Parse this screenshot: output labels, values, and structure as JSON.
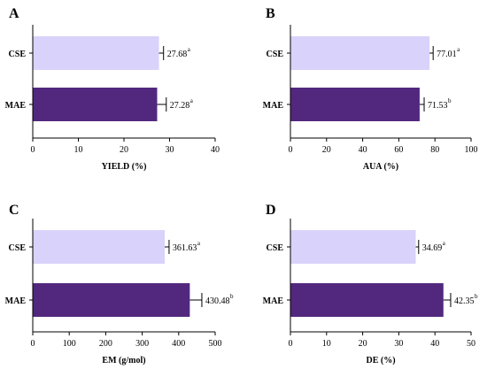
{
  "colors": {
    "CSE": "#d9d2fb",
    "MAE": "#52287f",
    "axis": "#000000"
  },
  "chart_data": [
    {
      "panel": "A",
      "type": "bar",
      "orientation": "horizontal",
      "categories": [
        "CSE",
        "MAE"
      ],
      "values": [
        27.68,
        27.28
      ],
      "errors": [
        1.0,
        2.0
      ],
      "value_labels": [
        "27.68",
        "27.28"
      ],
      "superscripts": [
        "a",
        "a"
      ],
      "xlabel": "YIELD (%)",
      "xlim": [
        0,
        40
      ],
      "xticks": [
        0,
        10,
        20,
        30,
        40
      ]
    },
    {
      "panel": "B",
      "type": "bar",
      "orientation": "horizontal",
      "categories": [
        "CSE",
        "MAE"
      ],
      "values": [
        77.01,
        71.53
      ],
      "errors": [
        2.0,
        2.5
      ],
      "value_labels": [
        "77.01",
        "71.53"
      ],
      "superscripts": [
        "a",
        "b"
      ],
      "xlabel": "AUA (%)",
      "xlim": [
        0,
        100
      ],
      "xticks": [
        0,
        20,
        40,
        60,
        80,
        100
      ]
    },
    {
      "panel": "C",
      "type": "bar",
      "orientation": "horizontal",
      "categories": [
        "CSE",
        "MAE"
      ],
      "values": [
        361.63,
        430.48
      ],
      "errors": [
        12,
        33
      ],
      "value_labels": [
        "361.63",
        "430.48"
      ],
      "superscripts": [
        "a",
        "b"
      ],
      "xlabel": "EM (g/mol)",
      "xlim": [
        0,
        500
      ],
      "xticks": [
        0,
        100,
        200,
        300,
        400,
        500
      ]
    },
    {
      "panel": "D",
      "type": "bar",
      "orientation": "horizontal",
      "categories": [
        "CSE",
        "MAE"
      ],
      "values": [
        34.69,
        42.35
      ],
      "errors": [
        0.8,
        2.0
      ],
      "value_labels": [
        "34.69",
        "42.35"
      ],
      "superscripts": [
        "a",
        "b"
      ],
      "xlabel": "DE (%)",
      "xlim": [
        0,
        50
      ],
      "xticks": [
        0,
        10,
        20,
        30,
        40,
        50
      ]
    }
  ]
}
